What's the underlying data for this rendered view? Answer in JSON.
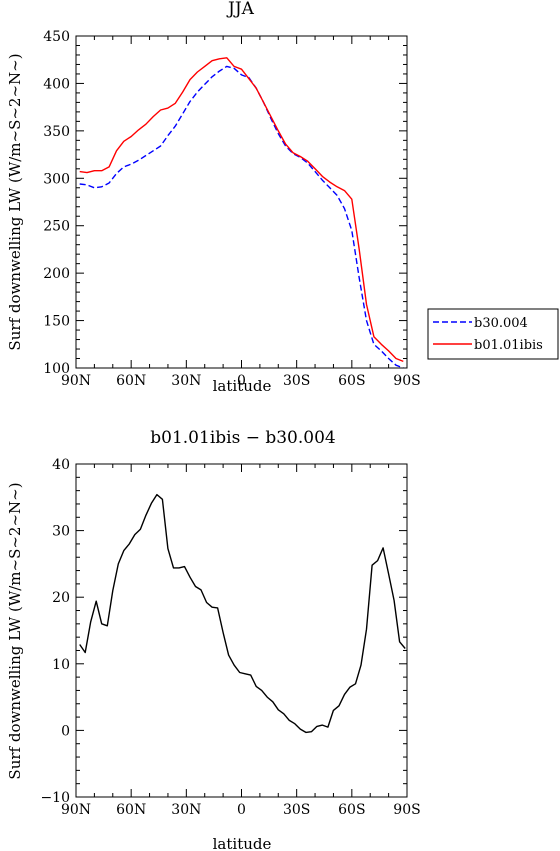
{
  "chart_data": [
    {
      "type": "line",
      "title": "JJA",
      "xlabel": "latitude",
      "ylabel": "Surf downwelling LW (W/m~S~2~N~)",
      "x_ticks": [
        "90N",
        "60N",
        "30N",
        "0",
        "30S",
        "60S",
        "90S"
      ],
      "y_ticks": [
        "100",
        "150",
        "200",
        "250",
        "300",
        "350",
        "400",
        "450"
      ],
      "xlim": [
        90,
        -90
      ],
      "ylim": [
        100,
        450
      ],
      "x": [
        88,
        84,
        80,
        76,
        72,
        68,
        64,
        60,
        56,
        52,
        48,
        44,
        40,
        36,
        32,
        28,
        24,
        20,
        16,
        12,
        8,
        4,
        0,
        -4,
        -8,
        -12,
        -16,
        -20,
        -24,
        -28,
        -32,
        -36,
        -40,
        -44,
        -48,
        -52,
        -56,
        -60,
        -64,
        -68,
        -72,
        -76,
        -80,
        -84,
        -88
      ],
      "series": [
        {
          "name": "b30.004",
          "color": "#0000ff",
          "dash": "dashed",
          "values": [
            294,
            293,
            290,
            291,
            295,
            305,
            312,
            315,
            319,
            324,
            329,
            334,
            345,
            355,
            368,
            381,
            391,
            399,
            407,
            413,
            418,
            416,
            409,
            406,
            395,
            380,
            363,
            347,
            334,
            326,
            322,
            316,
            307,
            298,
            290,
            282,
            268,
            245,
            195,
            150,
            125,
            118,
            110,
            103,
            100
          ]
        },
        {
          "name": "b01.01ibis",
          "color": "#ff0000",
          "dash": "solid",
          "values": [
            307,
            306,
            308,
            308,
            312,
            329,
            339,
            344,
            351,
            357,
            365,
            372,
            374,
            379,
            391,
            404,
            412,
            418,
            424,
            426,
            427,
            418,
            415,
            405,
            395,
            380,
            365,
            350,
            336,
            327,
            323,
            318,
            310,
            302,
            296,
            291,
            287,
            278,
            225,
            167,
            133,
            125,
            118,
            110,
            107
          ]
        }
      ],
      "legend": "right"
    },
    {
      "type": "line",
      "title": "b01.01ibis − b30.004",
      "xlabel": "latitude",
      "ylabel": "Surf downwelling LW (W/m~S~2~N~)",
      "x_ticks": [
        "90N",
        "60N",
        "30N",
        "0",
        "30S",
        "60S",
        "90S"
      ],
      "y_ticks": [
        "−10",
        "0",
        "10",
        "20",
        "30",
        "40"
      ],
      "xlim": [
        90,
        -90
      ],
      "ylim": [
        -10,
        40
      ],
      "x": [
        88,
        85,
        82,
        79,
        76,
        73,
        70,
        67,
        64,
        61,
        58,
        55,
        52,
        49,
        46,
        43,
        40,
        37,
        34,
        31,
        28,
        25,
        22,
        19,
        16,
        13,
        10,
        7,
        4,
        1,
        -2,
        -5,
        -8,
        -11,
        -14,
        -17,
        -20,
        -23,
        -26,
        -29,
        -32,
        -35,
        -38,
        -41,
        -44,
        -47,
        -50,
        -53,
        -56,
        -59,
        -62,
        -65,
        -68,
        -71,
        -74,
        -77,
        -80,
        -83,
        -86,
        -89
      ],
      "series": [
        {
          "name": "",
          "color": "#000000",
          "dash": "solid",
          "values": [
            12.9,
            11.7,
            16.3,
            19.4,
            16.0,
            15.7,
            21.0,
            25.0,
            27.0,
            28.0,
            29.4,
            30.2,
            32.3,
            34.1,
            35.4,
            34.7,
            27.3,
            24.4,
            24.4,
            24.6,
            23.0,
            21.6,
            21.1,
            19.2,
            18.5,
            18.4,
            14.7,
            11.3,
            9.8,
            8.7,
            8.5,
            8.3,
            6.6,
            6.0,
            5.0,
            4.3,
            3.1,
            2.5,
            1.5,
            1.0,
            0.2,
            -0.3,
            -0.2,
            0.6,
            0.8,
            0.5,
            3.0,
            3.7,
            5.4,
            6.5,
            7.0,
            9.8,
            15.2,
            24.8,
            25.5,
            27.4,
            23.5,
            19.5,
            13.3,
            12.3
          ]
        }
      ]
    }
  ]
}
